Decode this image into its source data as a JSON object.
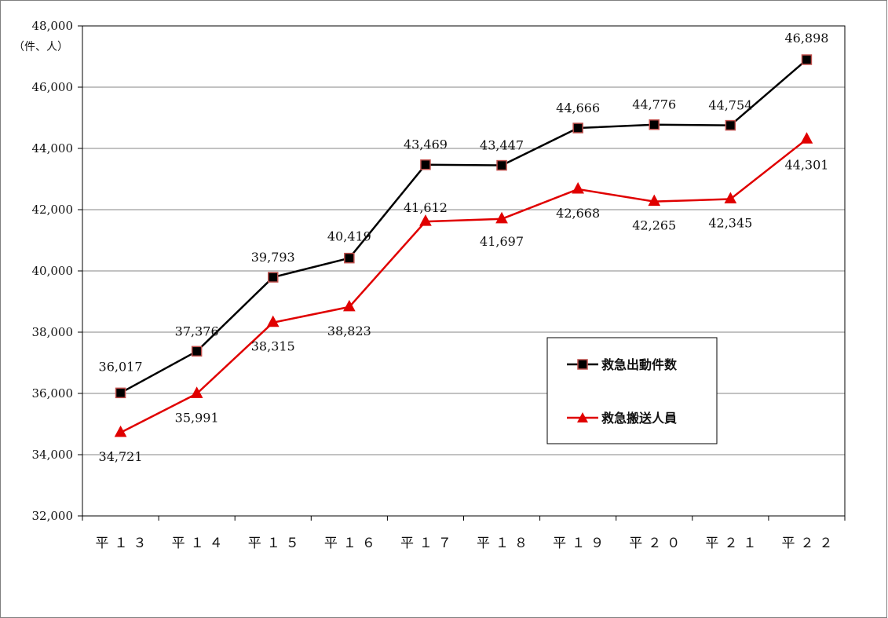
{
  "chart_data": {
    "type": "line",
    "categories": [
      "平13",
      "平14",
      "平15",
      "平16",
      "平17",
      "平18",
      "平19",
      "平20",
      "平21",
      "平22"
    ],
    "category_labels": [
      "平１３",
      "平１４",
      "平１５",
      "平１６",
      "平１７",
      "平１８",
      "平１９",
      "平２０",
      "平２１",
      "平２２"
    ],
    "series": [
      {
        "name": "救急出動件数",
        "values": [
          36017,
          37376,
          39793,
          40419,
          43469,
          43447,
          44666,
          44776,
          44754,
          46898
        ],
        "labels": [
          "36,017",
          "37,376",
          "39,793",
          "40,419",
          "43,469",
          "43,447",
          "44,666",
          "44,776",
          "44,754",
          "46,898"
        ],
        "color": "#000000",
        "marker": "square",
        "marker_fill": "#000000",
        "marker_edge": "#c0504d"
      },
      {
        "name": "救急搬送人員",
        "values": [
          34721,
          35991,
          38315,
          38823,
          41612,
          41697,
          42668,
          42265,
          42345,
          44301
        ],
        "labels": [
          "34,721",
          "35,991",
          "38,315",
          "38,823",
          "41,612",
          "41,697",
          "42,668",
          "42,265",
          "42,345",
          "44,301"
        ],
        "color": "#e00000",
        "marker": "triangle",
        "marker_fill": "#e00000",
        "marker_edge": "#e00000"
      }
    ],
    "y_unit_label": "（件、人）",
    "ylim": [
      32000,
      48000
    ],
    "y_ticks": [
      32000,
      34000,
      36000,
      38000,
      40000,
      42000,
      44000,
      46000,
      48000
    ],
    "y_tick_labels": [
      "32,000",
      "34,000",
      "36,000",
      "38,000",
      "40,000",
      "42,000",
      "44,000",
      "46,000",
      "48,000"
    ],
    "grid": true,
    "legend_position": "right-middle",
    "title": "",
    "xlabel": "",
    "ylabel": ""
  }
}
